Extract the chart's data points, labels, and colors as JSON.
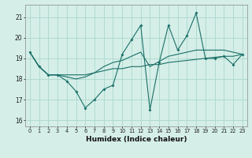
{
  "xlabel": "Humidex (Indice chaleur)",
  "bg_color": "#d5eee8",
  "grid_color": "#aad8cc",
  "line_color": "#1a7068",
  "xlim": [
    -0.5,
    23.5
  ],
  "ylim": [
    15.7,
    21.6
  ],
  "yticks": [
    16,
    17,
    18,
    19,
    20,
    21
  ],
  "xticks": [
    0,
    1,
    2,
    3,
    4,
    5,
    6,
    7,
    8,
    9,
    10,
    11,
    12,
    13,
    14,
    15,
    16,
    17,
    18,
    19,
    20,
    21,
    22,
    23
  ],
  "main_y": [
    19.3,
    18.6,
    18.2,
    18.2,
    17.9,
    17.4,
    16.6,
    17.0,
    17.5,
    17.7,
    19.2,
    19.9,
    20.6,
    16.5,
    18.8,
    20.6,
    19.4,
    20.1,
    21.2,
    19.0,
    19.0,
    19.1,
    18.7,
    19.2
  ],
  "trend1_y": [
    19.3,
    18.6,
    18.2,
    18.2,
    18.2,
    18.2,
    18.2,
    18.3,
    18.4,
    18.5,
    18.5,
    18.6,
    18.6,
    18.7,
    18.7,
    18.8,
    18.85,
    18.9,
    18.95,
    19.0,
    19.05,
    19.1,
    19.1,
    19.2
  ],
  "trend2_y": [
    19.3,
    18.6,
    18.2,
    18.2,
    18.1,
    18.0,
    18.1,
    18.3,
    18.6,
    18.8,
    18.9,
    19.1,
    19.3,
    18.6,
    18.85,
    19.1,
    19.2,
    19.3,
    19.4,
    19.4,
    19.4,
    19.4,
    19.3,
    19.2
  ]
}
